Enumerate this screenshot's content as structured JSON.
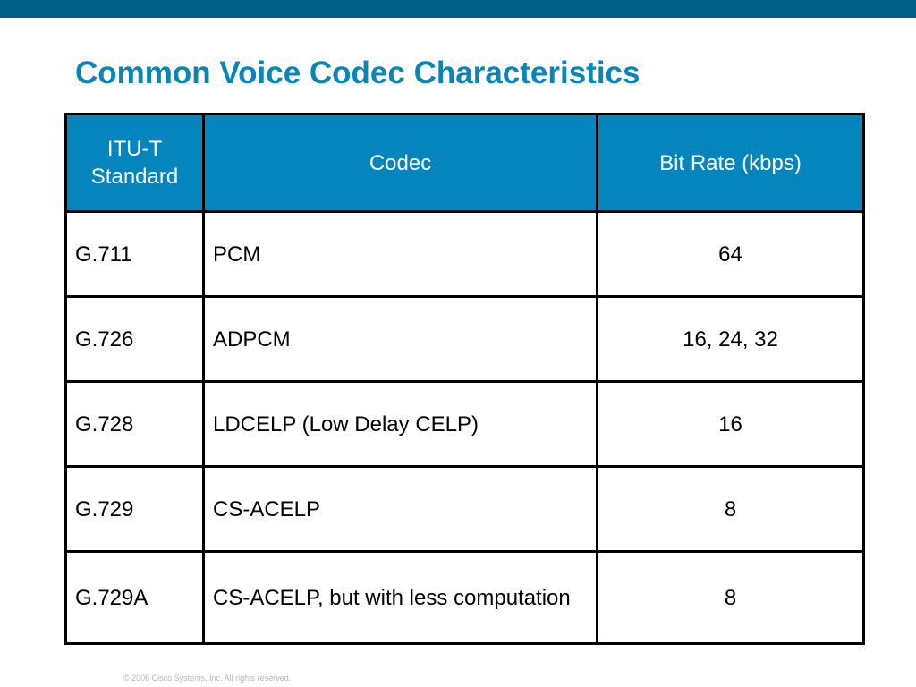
{
  "slide": {
    "title": "Common Voice Codec Characteristics",
    "footer": "© 2006 Cisco Systems, Inc. All rights reserved."
  },
  "colors": {
    "top_bar": "#005f87",
    "title": "#0a85b8",
    "header_fill": "#0585bd",
    "border": "#000000"
  },
  "table": {
    "headers": [
      "ITU-T Standard",
      "Codec",
      "Bit Rate (kbps)"
    ],
    "rows": [
      [
        "G.711",
        "PCM",
        "64"
      ],
      [
        "G.726",
        "ADPCM",
        "16, 24, 32"
      ],
      [
        "G.728",
        "LDCELP (Low Delay CELP)",
        "16"
      ],
      [
        "G.729",
        "CS-ACELP",
        "8"
      ],
      [
        "G.729A",
        "CS-ACELP, but with less computation",
        "8"
      ]
    ]
  }
}
